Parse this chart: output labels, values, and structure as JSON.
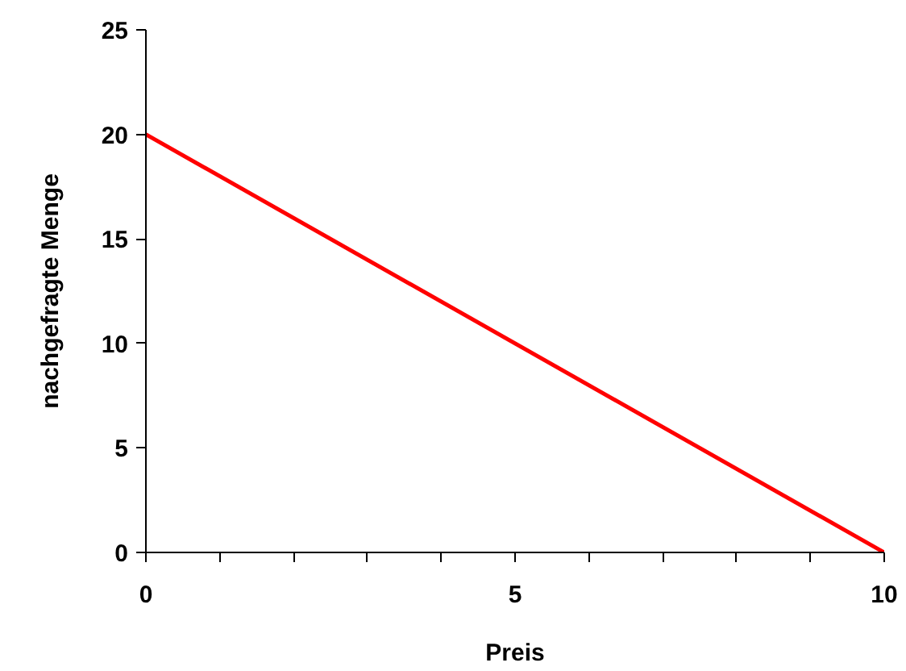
{
  "chart_data": {
    "type": "line",
    "xlabel": "Preis",
    "ylabel": "nachgefragte Menge",
    "x": [
      0,
      10
    ],
    "series": [
      {
        "color": "#ff0000",
        "values": [
          20,
          0
        ]
      }
    ],
    "xlim": [
      0,
      10
    ],
    "ylim": [
      0,
      25
    ],
    "xticks": [
      0,
      {
        "value": 1,
        "label": null
      },
      {
        "value": 2,
        "label": null
      },
      {
        "value": 3,
        "label": null
      },
      {
        "value": 4,
        "label": null
      },
      5,
      {
        "value": 6,
        "label": null
      },
      {
        "value": 7,
        "label": null
      },
      {
        "value": 8,
        "label": null
      },
      {
        "value": 9,
        "label": null
      },
      10
    ],
    "yticks": [
      0,
      5,
      10,
      15,
      20,
      25
    ],
    "grid": false,
    "marker": "none",
    "line_style": "solid"
  }
}
